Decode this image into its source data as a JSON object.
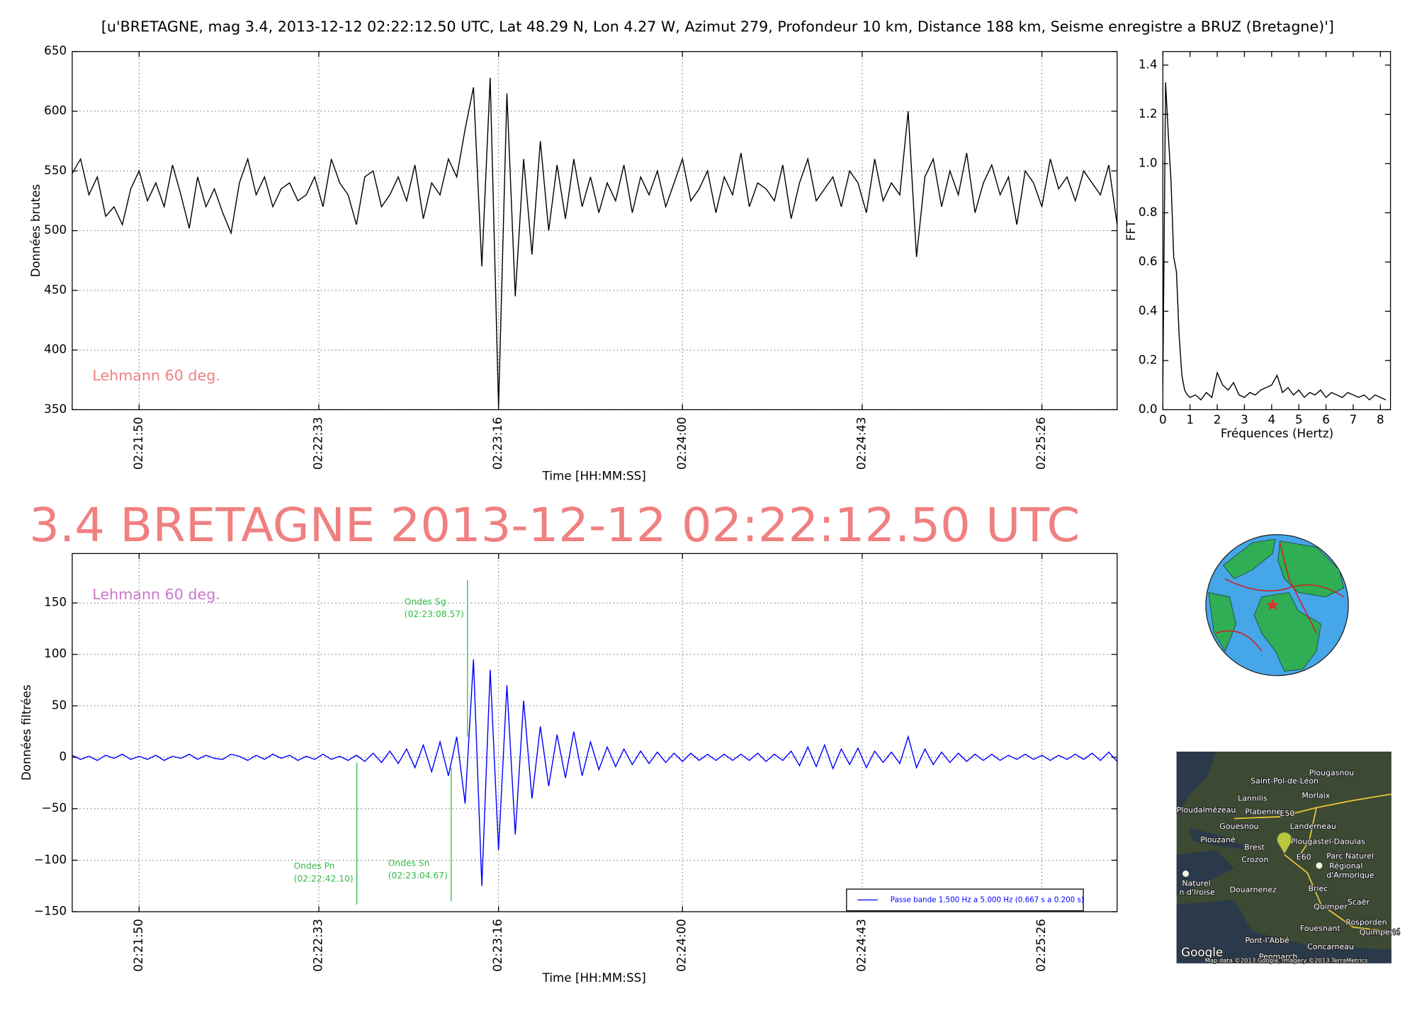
{
  "chart_data": [
    {
      "type": "line",
      "title": "[u'BRETAGNE, mag 3.4, 2013-12-12 02:22:12.50 UTC, Lat 48.29 N, Lon 4.27 W, Azimut 279, Profondeur 10 km, Distance 188 km, Seisme enregistre a BRUZ (Bretagne)']",
      "xlabel": "Time [HH:MM:SS]",
      "ylabel": "Données brutes",
      "annotation": "Lehmann 60 deg.",
      "annotation_color": "#f08080",
      "color": "#000000",
      "grid": true,
      "xlim": [
        8494,
        8744
      ],
      "ylim": [
        350,
        650
      ],
      "xticks": [
        {
          "value": 8510,
          "label": "02:21:50"
        },
        {
          "value": 8553,
          "label": "02:22:33"
        },
        {
          "value": 8596,
          "label": "02:23:16"
        },
        {
          "value": 8640,
          "label": "02:24:00"
        },
        {
          "value": 8683,
          "label": "02:24:43"
        },
        {
          "value": 8726,
          "label": "02:25:26"
        }
      ],
      "yticks": [
        350,
        400,
        450,
        500,
        550,
        600,
        650
      ],
      "x": [
        8494,
        8496,
        8498,
        8500,
        8502,
        8504,
        8506,
        8508,
        8510,
        8512,
        8514,
        8516,
        8518,
        8520,
        8522,
        8524,
        8526,
        8528,
        8530,
        8532,
        8534,
        8536,
        8538,
        8540,
        8542,
        8544,
        8546,
        8548,
        8550,
        8552,
        8554,
        8556,
        8558,
        8560,
        8562,
        8564,
        8566,
        8568,
        8570,
        8572,
        8574,
        8576,
        8578,
        8580,
        8582,
        8584,
        8586,
        8588,
        8590,
        8592,
        8594,
        8596,
        8598,
        8600,
        8602,
        8604,
        8606,
        8608,
        8610,
        8612,
        8614,
        8616,
        8618,
        8620,
        8622,
        8624,
        8626,
        8628,
        8630,
        8632,
        8634,
        8636,
        8638,
        8640,
        8642,
        8644,
        8646,
        8648,
        8650,
        8652,
        8654,
        8656,
        8658,
        8660,
        8662,
        8664,
        8666,
        8668,
        8670,
        8672,
        8674,
        8676,
        8678,
        8680,
        8682,
        8684,
        8686,
        8688,
        8690,
        8692,
        8694,
        8696,
        8698,
        8700,
        8702,
        8704,
        8706,
        8708,
        8710,
        8712,
        8714,
        8716,
        8718,
        8720,
        8722,
        8724,
        8726,
        8728,
        8730,
        8732,
        8734,
        8736,
        8738,
        8740,
        8742,
        8744
      ],
      "values": [
        548,
        560,
        530,
        545,
        512,
        520,
        505,
        535,
        550,
        525,
        540,
        520,
        555,
        530,
        502,
        545,
        520,
        535,
        515,
        498,
        540,
        560,
        530,
        545,
        520,
        535,
        540,
        525,
        530,
        545,
        520,
        560,
        540,
        530,
        505,
        545,
        550,
        520,
        530,
        545,
        525,
        555,
        510,
        540,
        530,
        560,
        545,
        585,
        620,
        470,
        628,
        352,
        615,
        445,
        560,
        480,
        575,
        500,
        555,
        510,
        560,
        520,
        545,
        515,
        540,
        525,
        555,
        515,
        545,
        530,
        550,
        520,
        540,
        560,
        525,
        535,
        550,
        515,
        545,
        530,
        565,
        520,
        540,
        535,
        525,
        555,
        510,
        540,
        560,
        525,
        535,
        545,
        520,
        550,
        540,
        515,
        560,
        525,
        540,
        530,
        600,
        478,
        545,
        560,
        520,
        550,
        530,
        565,
        515,
        540,
        555,
        530,
        545,
        505,
        550,
        540,
        520,
        560,
        535,
        545,
        525,
        550,
        540,
        530,
        555,
        505
      ]
    },
    {
      "type": "line",
      "xlabel": "Fréquences (Hertz)",
      "ylabel": "FFT",
      "color": "#000000",
      "grid": false,
      "xlim": [
        0,
        8.37
      ],
      "ylim": [
        0,
        1.455
      ],
      "xticks": [
        0,
        1,
        2,
        3,
        4,
        5,
        6,
        7,
        8
      ],
      "yticks": [
        {
          "value": 0,
          "label": "0.0"
        },
        0.2,
        0.4,
        0.6,
        0.8,
        {
          "value": 1,
          "label": "1.0"
        },
        1.2,
        1.4
      ],
      "x": [
        0,
        0.1,
        0.2,
        0.3,
        0.4,
        0.5,
        0.6,
        0.7,
        0.8,
        0.9,
        1.0,
        1.2,
        1.4,
        1.6,
        1.8,
        2.0,
        2.2,
        2.4,
        2.6,
        2.8,
        3.0,
        3.2,
        3.4,
        3.6,
        3.8,
        4.0,
        4.2,
        4.4,
        4.6,
        4.8,
        5.0,
        5.2,
        5.4,
        5.6,
        5.8,
        6.0,
        6.2,
        6.4,
        6.6,
        6.8,
        7.0,
        7.2,
        7.4,
        7.6,
        7.8,
        8.0,
        8.2
      ],
      "values": [
        0.1,
        1.33,
        1.12,
        0.93,
        0.62,
        0.56,
        0.3,
        0.14,
        0.08,
        0.06,
        0.05,
        0.06,
        0.04,
        0.07,
        0.05,
        0.15,
        0.1,
        0.08,
        0.11,
        0.06,
        0.05,
        0.07,
        0.06,
        0.08,
        0.09,
        0.1,
        0.14,
        0.07,
        0.09,
        0.06,
        0.08,
        0.05,
        0.07,
        0.06,
        0.08,
        0.05,
        0.07,
        0.06,
        0.05,
        0.07,
        0.06,
        0.05,
        0.06,
        0.04,
        0.06,
        0.05,
        0.04
      ]
    },
    {
      "type": "line",
      "title": "3.4 BRETAGNE 2013-12-12 02:22:12.50 UTC",
      "title_color": "#f08080",
      "xlabel": "Time [HH:MM:SS]",
      "ylabel": "Données filtrées",
      "annotation": "Lehmann 60 deg.",
      "annotation_color": "#cc77cc",
      "grid": true,
      "legend": "lower right",
      "xlim": [
        8494,
        8744
      ],
      "ylim": [
        -150,
        198
      ],
      "xticks": [
        {
          "value": 8510,
          "label": "02:21:50"
        },
        {
          "value": 8553,
          "label": "02:22:33"
        },
        {
          "value": 8596,
          "label": "02:23:16"
        },
        {
          "value": 8640,
          "label": "02:24:00"
        },
        {
          "value": 8683,
          "label": "02:24:43"
        },
        {
          "value": 8726,
          "label": "02:25:26"
        }
      ],
      "yticks": [
        {
          "value": -150,
          "label": "−150"
        },
        {
          "value": -100,
          "label": "−100"
        },
        {
          "value": -50,
          "label": "−50"
        },
        0,
        50,
        100,
        150
      ],
      "x": [
        8494,
        8496,
        8498,
        8500,
        8502,
        8504,
        8506,
        8508,
        8510,
        8512,
        8514,
        8516,
        8518,
        8520,
        8522,
        8524,
        8526,
        8528,
        8530,
        8532,
        8534,
        8536,
        8538,
        8540,
        8542,
        8544,
        8546,
        8548,
        8550,
        8552,
        8554,
        8556,
        8558,
        8560,
        8562,
        8564,
        8566,
        8568,
        8570,
        8572,
        8574,
        8576,
        8578,
        8580,
        8582,
        8584,
        8586,
        8588,
        8590,
        8592,
        8594,
        8596,
        8598,
        8600,
        8602,
        8604,
        8606,
        8608,
        8610,
        8612,
        8614,
        8616,
        8618,
        8620,
        8622,
        8624,
        8626,
        8628,
        8630,
        8632,
        8634,
        8636,
        8638,
        8640,
        8642,
        8644,
        8646,
        8648,
        8650,
        8652,
        8654,
        8656,
        8658,
        8660,
        8662,
        8664,
        8666,
        8668,
        8670,
        8672,
        8674,
        8676,
        8678,
        8680,
        8682,
        8684,
        8686,
        8688,
        8690,
        8692,
        8694,
        8696,
        8698,
        8700,
        8702,
        8704,
        8706,
        8708,
        8710,
        8712,
        8714,
        8716,
        8718,
        8720,
        8722,
        8724,
        8726,
        8728,
        8730,
        8732,
        8734,
        8736,
        8738,
        8740,
        8742,
        8744
      ],
      "series": [
        {
          "name": "Passe bande 1.500 Hz a 5.000 Hz (0.667 s a 0.200 s)",
          "color": "#0000ff",
          "values": [
            2,
            -2,
            1,
            -3,
            2,
            -1,
            3,
            -2,
            1,
            -2,
            2,
            -3,
            1,
            -1,
            3,
            -2,
            2,
            -1,
            -2,
            3,
            1,
            -3,
            2,
            -2,
            3,
            -1,
            2,
            -3,
            1,
            -2,
            3,
            -2,
            1,
            -3,
            2,
            -4,
            4,
            -5,
            6,
            -6,
            8,
            -10,
            12,
            -14,
            15,
            -18,
            20,
            -45,
            95,
            -125,
            85,
            -90,
            70,
            -75,
            55,
            -40,
            30,
            -28,
            22,
            -20,
            25,
            -18,
            15,
            -12,
            10,
            -9,
            8,
            -7,
            6,
            -6,
            5,
            -5,
            4,
            -4,
            4,
            -3,
            3,
            -3,
            3,
            -3,
            3,
            -3,
            4,
            -4,
            3,
            -3,
            6,
            -8,
            10,
            -9,
            12,
            -11,
            8,
            -7,
            9,
            -10,
            6,
            -5,
            5,
            -6,
            20,
            -10,
            8,
            -7,
            5,
            -5,
            4,
            -4,
            3,
            -3,
            3,
            -3,
            2,
            -2,
            3,
            -2,
            2,
            -3,
            2,
            -2,
            3,
            -2,
            4,
            -3,
            5,
            -4
          ]
        }
      ],
      "pick_color": "#33bb44",
      "picks": [
        {
          "label": "Ondes Pn",
          "time": "(02:22:42.10)",
          "x": 8562.1,
          "y": [
            -143,
            -5
          ]
        },
        {
          "label": "Ondes Sn",
          "time": "(02:23:04.67)",
          "x": 8584.67,
          "y": [
            -140,
            -10
          ]
        },
        {
          "label": "Ondes Sg",
          "time": "(02:23:08.57)",
          "x": 8588.57,
          "y": [
            20,
            172
          ]
        }
      ]
    }
  ],
  "map": {
    "labels": [
      "Plougasnou",
      "Saint-Pol-de-Léon",
      "Morlaix",
      "Lannilis",
      "Ploudalmézeau",
      "Plabennec",
      "E50",
      "Gouesnou",
      "Landerneau",
      "Plouzané",
      "Plougastel-Daoulas",
      "Brest",
      "Crozon",
      "E60",
      "Parc Naturel",
      "Régional",
      "d'Armorique",
      "Naturel",
      "n d'Iroise",
      "Douarnenez",
      "Briec",
      "Quimper",
      "Scaër",
      "Rosporden",
      "Fouesnant",
      "Quimperlé",
      "Pont-l'Abbé",
      "Concarneau",
      "Penmarch"
    ],
    "logo": "Google",
    "attribution": "Map data ©2013 Google, Imagery ©2013 TerraMetrics"
  }
}
